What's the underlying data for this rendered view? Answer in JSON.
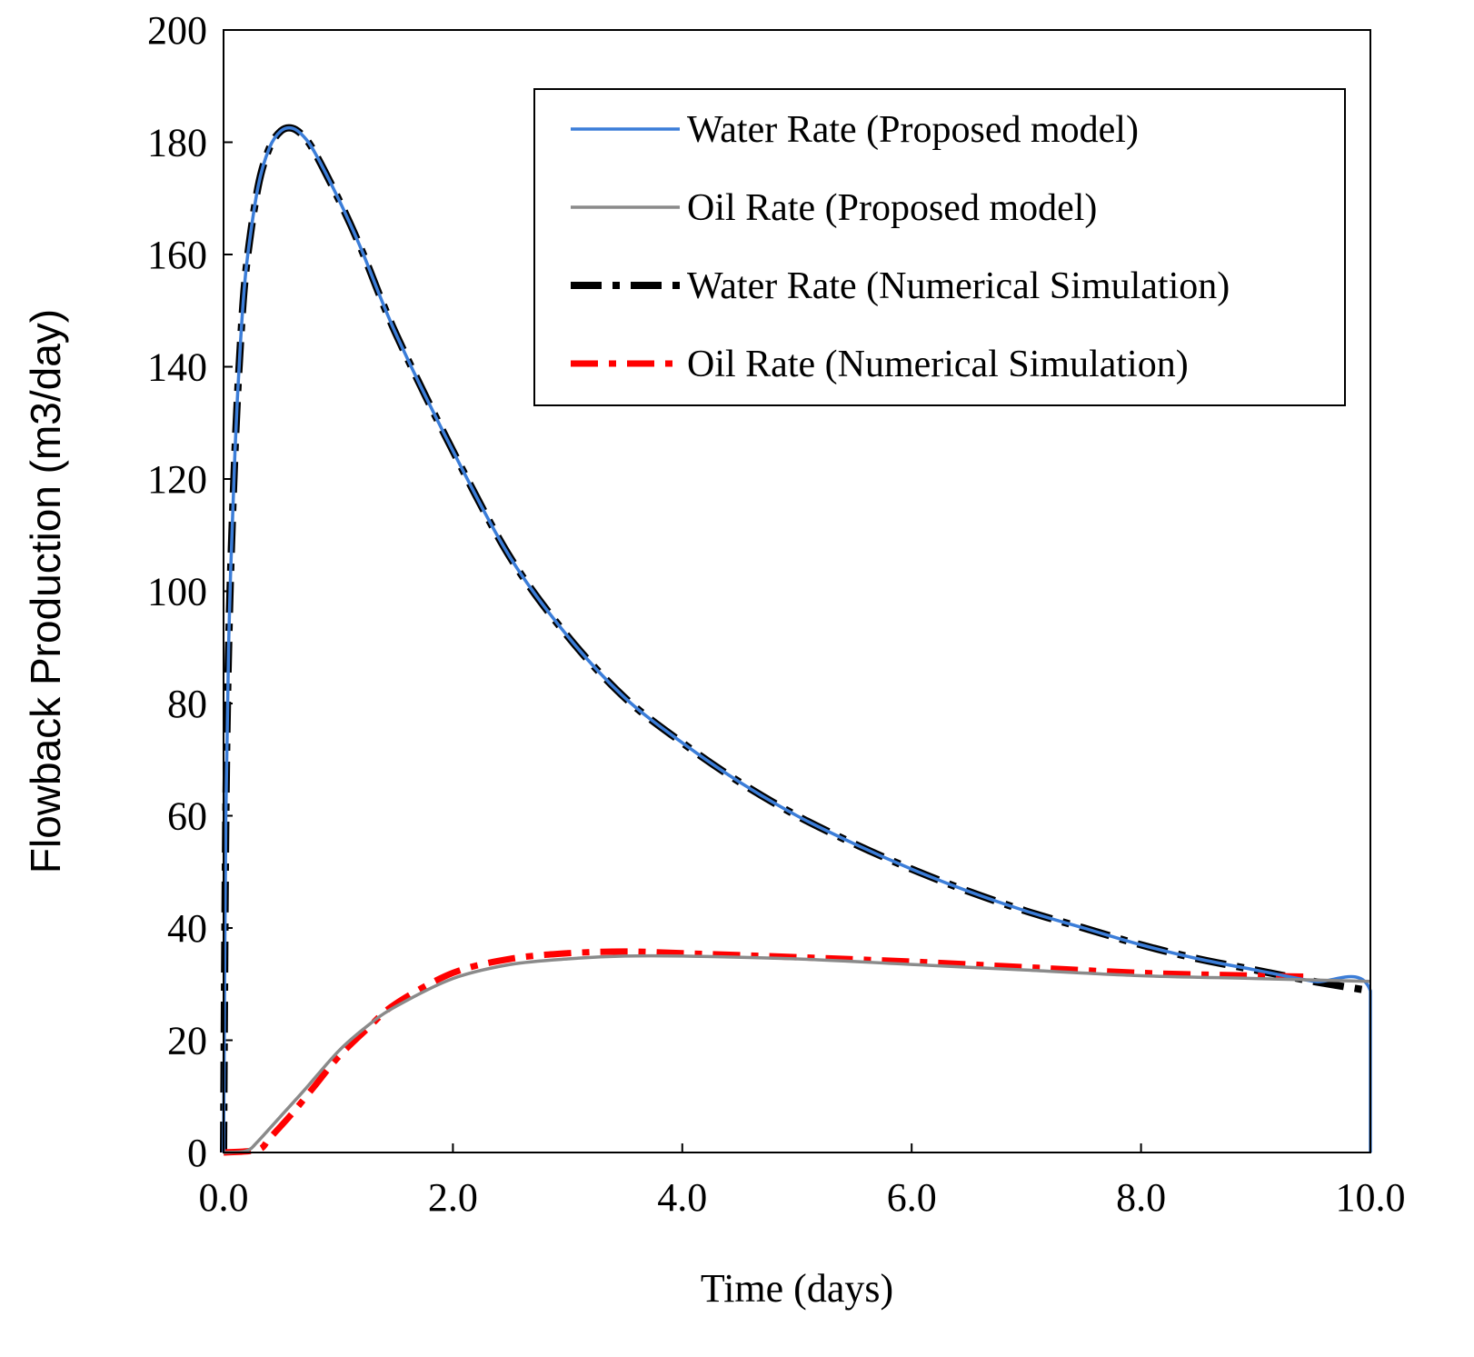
{
  "chart_data": {
    "type": "line",
    "title": "",
    "xlabel": "Time (days)",
    "ylabel": "Flowback  Production  (m3/day)",
    "xlim": [
      0,
      10
    ],
    "ylim": [
      0,
      200
    ],
    "xticks": [
      0,
      2,
      4,
      6,
      8,
      10
    ],
    "xtick_labels": [
      "0.0",
      "2.0",
      "4.0",
      "6.0",
      "8.0",
      "10.0"
    ],
    "yticks": [
      0,
      20,
      40,
      60,
      80,
      100,
      120,
      140,
      160,
      180,
      200
    ],
    "ytick_labels": [
      "0",
      "20",
      "40",
      "60",
      "80",
      "100",
      "120",
      "140",
      "160",
      "180",
      "200"
    ],
    "grid": false,
    "legend_position": "top-right",
    "series": [
      {
        "name": "Water Rate (Proposed model)",
        "color": "#3b7dd8",
        "style": "solid",
        "x": [
          0,
          0.02,
          0.05,
          0.1,
          0.15,
          0.2,
          0.3,
          0.4,
          0.5,
          0.6,
          0.7,
          0.8,
          1.0,
          1.2,
          1.5,
          2.0,
          2.5,
          3.0,
          3.5,
          4.0,
          4.5,
          5.0,
          5.5,
          6.0,
          6.5,
          7.0,
          7.5,
          8.0,
          8.5,
          9.0,
          9.5,
          10.0,
          10.0
        ],
        "y": [
          0,
          60,
          95,
          125,
          145,
          158,
          172,
          179,
          182,
          182.5,
          181,
          178,
          170,
          161,
          146,
          125,
          106,
          92,
          81,
          73,
          66,
          60,
          55,
          50.5,
          46.5,
          43,
          40,
          37,
          34.5,
          32.5,
          30.5,
          28.8,
          0
        ]
      },
      {
        "name": "Oil Rate (Proposed model)",
        "color": "#8a8a8a",
        "style": "solid",
        "x": [
          0,
          0.2,
          0.3,
          0.5,
          0.7,
          1.0,
          1.25,
          1.5,
          2.0,
          2.5,
          3.0,
          3.5,
          4.0,
          5.0,
          6.0,
          7.0,
          8.0,
          9.0,
          10.0
        ],
        "y": [
          0,
          0.3,
          2,
          6.5,
          11,
          18,
          22.5,
          26,
          31,
          33.5,
          34.5,
          35,
          35,
          34.5,
          33.5,
          32.5,
          31.5,
          31,
          30.5
        ]
      },
      {
        "name": "Water Rate (Numerical Simulation)",
        "color": "#000000",
        "style": "dashdot",
        "x": [
          0,
          0.02,
          0.05,
          0.1,
          0.15,
          0.2,
          0.3,
          0.4,
          0.5,
          0.6,
          0.7,
          0.8,
          1.0,
          1.2,
          1.5,
          2.0,
          2.5,
          3.0,
          3.5,
          4.0,
          4.5,
          5.0,
          5.5,
          6.0,
          6.5,
          7.0,
          7.5,
          8.0,
          8.5,
          9.0,
          9.5,
          10.0
        ],
        "y": [
          0,
          60,
          95,
          125,
          145,
          158,
          172,
          179,
          182,
          182.5,
          181,
          178,
          170,
          161,
          146,
          125,
          106,
          92,
          81,
          73,
          66,
          60,
          55,
          50.5,
          46.5,
          43,
          40,
          37,
          34.5,
          32.5,
          30.5,
          28.8
        ]
      },
      {
        "name": "Oil Rate (Numerical Simulation)",
        "color": "#ff0000",
        "style": "dashdot",
        "x": [
          0,
          0.3,
          0.4,
          0.6,
          0.8,
          1.0,
          1.25,
          1.5,
          2.0,
          2.5,
          3.0,
          3.5,
          4.0,
          5.0,
          6.0,
          7.0,
          8.0,
          9.0,
          9.5
        ],
        "y": [
          0,
          0.5,
          2.5,
          7,
          12,
          17,
          22,
          26.5,
          32,
          34.5,
          35.5,
          35.8,
          35.5,
          34.8,
          34,
          33,
          32,
          31.5,
          31.3
        ]
      }
    ]
  }
}
